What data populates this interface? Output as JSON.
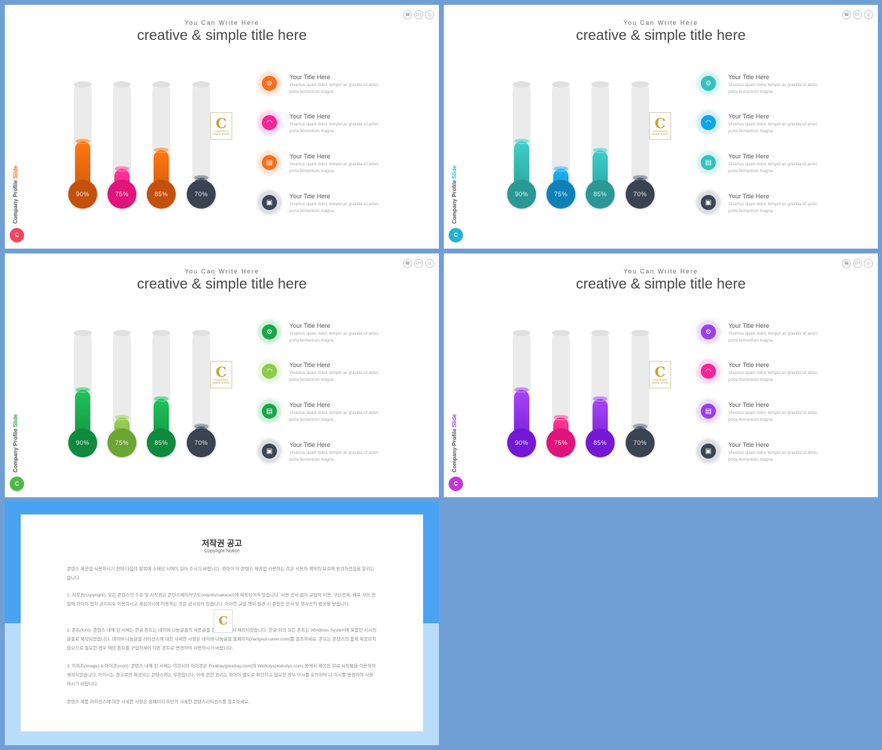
{
  "slides": [
    {
      "eyebrow": "You Can Write Here",
      "title": "creative & simple title here",
      "side_label_main": "Company Profile",
      "side_label_accent": "Slide",
      "side_badge": "C",
      "colors": {
        "accent": "#f76d1e",
        "badge": "#f2455f"
      },
      "thermometers": [
        {
          "label": "90%",
          "value": 90,
          "color_top": "#ff7a12",
          "color_bottom": "#c9500a",
          "bulb": "#c4500b"
        },
        {
          "label": "75%",
          "value": 75,
          "color_top": "#ff3a98",
          "color_bottom": "#e11676",
          "bulb": "#e0147a"
        },
        {
          "label": "85%",
          "value": 85,
          "color_top": "#ff7a12",
          "color_bottom": "#c9500a",
          "bulb": "#c4500b"
        },
        {
          "label": "70%",
          "value": 70,
          "color_top": "#556174",
          "color_bottom": "#363f4e",
          "bulb": "#3a4352"
        }
      ],
      "items": [
        {
          "icon": "gear-icon",
          "title": "Your Title Here",
          "desc": "Vivamus quam dolor, tempor ac gravida sit amet, porta fermentum magna.",
          "color": "#f7701e"
        },
        {
          "icon": "wifi-icon",
          "title": "Your Title Here",
          "desc": "Vivamus quam dolor, tempor ac gravida sit amet, porta fermentum magna.",
          "color": "#f5259a"
        },
        {
          "icon": "clipboard-icon",
          "title": "Your Title Here",
          "desc": "Vivamus quam dolor, tempor ac gravida sit amet, porta fermentum magna.",
          "color": "#f7701e"
        },
        {
          "icon": "lock-icon",
          "title": "Your Title Here",
          "desc": "Vivamus quam dolor, tempor ac gravida sit amet, porta fermentum magna.",
          "color": "#3d4656"
        }
      ]
    },
    {
      "eyebrow": "You Can Write Here",
      "title": "creative & simple title here",
      "side_label_main": "Company Profile",
      "side_label_accent": "Slide",
      "side_badge": "C",
      "colors": {
        "accent": "#2bbcd4",
        "badge": "#23b4d2"
      },
      "thermometers": [
        {
          "label": "90%",
          "value": 90,
          "color_top": "#40cfc9",
          "color_bottom": "#239995",
          "bulb": "#2a9894"
        },
        {
          "label": "75%",
          "value": 75,
          "color_top": "#1fb5f0",
          "color_bottom": "#0a84bf",
          "bulb": "#0e80b8"
        },
        {
          "label": "85%",
          "value": 85,
          "color_top": "#40cfc9",
          "color_bottom": "#239995",
          "bulb": "#2a9894"
        },
        {
          "label": "70%",
          "value": 70,
          "color_top": "#556174",
          "color_bottom": "#363f4e",
          "bulb": "#3a4352"
        }
      ],
      "items": [
        {
          "icon": "gear-icon",
          "title": "Your Title Here",
          "desc": "Vivamus quam dolor, tempor ac gravida sit amet, porta fermentum magna.",
          "color": "#32c2c0"
        },
        {
          "icon": "wifi-icon",
          "title": "Your Title Here",
          "desc": "Vivamus quam dolor, tempor ac gravida sit amet, porta fermentum magna.",
          "color": "#12a4e6"
        },
        {
          "icon": "clipboard-icon",
          "title": "Your Title Here",
          "desc": "Vivamus quam dolor, tempor ac gravida sit amet, porta fermentum magna.",
          "color": "#32c2c0"
        },
        {
          "icon": "lock-icon",
          "title": "Your Title Here",
          "desc": "Vivamus quam dolor, tempor ac gravida sit amet, porta fermentum magna.",
          "color": "#3d4656"
        }
      ]
    },
    {
      "eyebrow": "You Can Write Here",
      "title": "creative & simple title here",
      "side_label_main": "Company Profile",
      "side_label_accent": "Slide",
      "side_badge": "C",
      "colors": {
        "accent": "#26a84a",
        "badge": "#4cb848"
      },
      "thermometers": [
        {
          "label": "90%",
          "value": 90,
          "color_top": "#1fc35c",
          "color_bottom": "#0f8a3d",
          "bulb": "#108a3e"
        },
        {
          "label": "75%",
          "value": 75,
          "color_top": "#9bd45a",
          "color_bottom": "#6da335",
          "bulb": "#6ba534"
        },
        {
          "label": "85%",
          "value": 85,
          "color_top": "#1fc35c",
          "color_bottom": "#0f8a3d",
          "bulb": "#108a3e"
        },
        {
          "label": "70%",
          "value": 70,
          "color_top": "#556174",
          "color_bottom": "#363f4e",
          "bulb": "#3a4352"
        }
      ],
      "items": [
        {
          "icon": "gear-icon",
          "title": "Your Title Here",
          "desc": "Vivamus quam dolor, tempor ac gravida sit amet, porta fermentum magna.",
          "color": "#18a848"
        },
        {
          "icon": "wifi-icon",
          "title": "Your Title Here",
          "desc": "Vivamus quam dolor, tempor ac gravida sit amet, porta fermentum magna.",
          "color": "#8ccb4e"
        },
        {
          "icon": "clipboard-icon",
          "title": "Your Title Here",
          "desc": "Vivamus quam dolor, tempor ac gravida sit amet, porta fermentum magna.",
          "color": "#18a848"
        },
        {
          "icon": "lock-icon",
          "title": "Your Title Here",
          "desc": "Vivamus quam dolor, tempor ac gravida sit amet, porta fermentum magna.",
          "color": "#3d4656"
        }
      ]
    },
    {
      "eyebrow": "You Can Write Here",
      "title": "creative & simple title here",
      "side_label_main": "Company Profile",
      "side_label_accent": "Slide",
      "side_badge": "C",
      "colors": {
        "accent": "#9b3fe8",
        "badge": "#c039d6"
      },
      "thermometers": [
        {
          "label": "90%",
          "value": 90,
          "color_top": "#a746f7",
          "color_bottom": "#6f18d3",
          "bulb": "#7418d6"
        },
        {
          "label": "75%",
          "value": 75,
          "color_top": "#ff3a98",
          "color_bottom": "#e11676",
          "bulb": "#e0147a"
        },
        {
          "label": "85%",
          "value": 85,
          "color_top": "#a746f7",
          "color_bottom": "#6f18d3",
          "bulb": "#7418d6"
        },
        {
          "label": "70%",
          "value": 70,
          "color_top": "#556174",
          "color_bottom": "#363f4e",
          "bulb": "#3a4352"
        }
      ],
      "items": [
        {
          "icon": "gear-icon",
          "title": "Your Title Here",
          "desc": "Vivamus quam dolor, tempor ac gravida sit amet, porta fermentum magna.",
          "color": "#9b3fe8"
        },
        {
          "icon": "wifi-icon",
          "title": "Your Title Here",
          "desc": "Vivamus quam dolor, tempor ac gravida sit amet, porta fermentum magna.",
          "color": "#f5259a"
        },
        {
          "icon": "clipboard-icon",
          "title": "Your Title Here",
          "desc": "Vivamus quam dolor, tempor ac gravida sit amet, porta fermentum magna.",
          "color": "#9b3fe8"
        },
        {
          "icon": "lock-icon",
          "title": "Your Title Here",
          "desc": "Vivamus quam dolor, tempor ac gravida sit amet, porta fermentum magna.",
          "color": "#3d4656"
        }
      ]
    }
  ],
  "logo": {
    "letter": "C",
    "text": "CONTENTS",
    "subtext": "MAKE OVER"
  },
  "notice": {
    "title": "저작권 공고",
    "subtitle": "Copyright Notice",
    "paragraphs": [
      "콘텐스 제공업 사용하시기 전에 다음의 항목에 소해당 시에이 읽어 주시기 바랍니다. 위아이 이 콘텐스 제공업 사용하는 것은 사용자 계약의 보호에 동의하셨음을 알리는합니다.",
      "1. 서작권(copyright): 모든 콘텐스의 소유 및 서작권은 콘텐스메이커닷(Contentsmakeout)에 제작되어져 있습니다. 서면 승낙 없이 교발적 이용, 구단전재, 배포 사이 엄밀에 와이이 엄히 금지되오 이용하시고 세심하시에 이용하는 것은 금시되어 있습니다. 이러한 교발 행위 발견 시 준인인 민사 및 형사상의 법상을 받습니다.",
      "2. 폰트(font): 콘텐스 내에 된 서체는 한글 폰트는 네이버 나눔글꼴의 세종글꼴 한국글꼴에서 제작되었습니다. 한글 외의 모든 폰트는 Windows System에 포함된 시서의 글꼴로 제작되었습니다. 네이버 나눔글꼴 라이선스에 대한 사세한 사항은 네이버 나눔글꼴 홈페이지(hangeul.naver.com)를 참조하세요. 폰트는 콘텐스의 함께 제공되지 않으므로 필요한 경우 해당 폰트를 구입하세야 다른 폰트로 변경하여 사용하시기 바랍니다.",
      "3. 이미지(image) & 아이콘(icon): 콘텐스 내에 된 서체는 이미시와 아이콘은 Pixabay(pixabay.com)와 Webolys(webolys.com) 등에서 제공된 무료 서작물을 이용하여 제작되었습니다. 아이시는 참고로만 제공되는 콘텐스와는 무관합니다. 이에 관한 권리는 위아이 별도로 확인하고 필요한 경우 이시를 유의하여 나 이시를 변경하여 사용하시기 바랍니다.",
      "콘텐스 제품 라이선스에 대한 사세한 사항은 홈페이지 하단의 사세한 콘텐스라이선스를 참조하세요."
    ]
  }
}
